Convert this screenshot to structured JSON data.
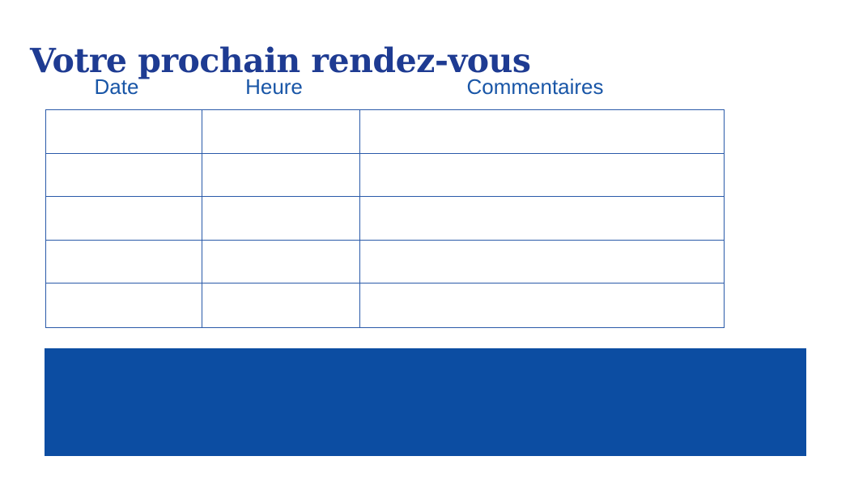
{
  "page": {
    "title": "Votre prochain rendez-vous"
  },
  "colors": {
    "background": "#ffffff",
    "title": "#1e3b92",
    "header_text": "#1956a7",
    "table_border": "#2a5aa9",
    "footer_block": "#0c4da2"
  },
  "table": {
    "headers": [
      "Date",
      "Heure",
      "Commentaires"
    ],
    "rows": [
      [
        "",
        "",
        ""
      ],
      [
        "",
        "",
        ""
      ],
      [
        "",
        "",
        ""
      ],
      [
        "",
        "",
        ""
      ],
      [
        "",
        "",
        ""
      ]
    ]
  }
}
